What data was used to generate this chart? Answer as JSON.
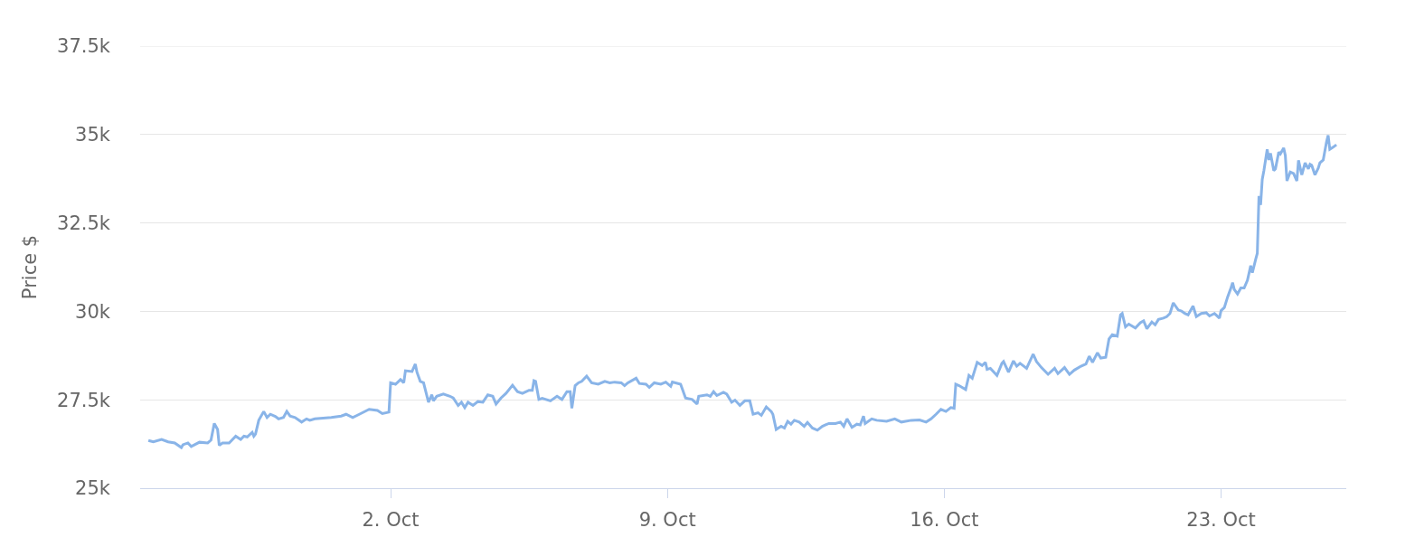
{
  "chart_data": {
    "type": "line",
    "ylabel": "Price $",
    "color": "#89b4e8",
    "grid": "y",
    "xlim": [
      "--09-25T16:00",
      "--10-26T04:00"
    ],
    "xticks": [
      {
        "value": "--10-02",
        "label": "2. Oct"
      },
      {
        "value": "--10-09",
        "label": "9. Oct"
      },
      {
        "value": "--10-16",
        "label": "16. Oct"
      },
      {
        "value": "--10-23",
        "label": "23. Oct"
      }
    ],
    "ylim": [
      25000,
      37500
    ],
    "yticks": [
      {
        "value": 25000,
        "label": "25k"
      },
      {
        "value": 27500,
        "label": "27.5k"
      },
      {
        "value": 30000,
        "label": "30k"
      },
      {
        "value": 32500,
        "label": "32.5k"
      },
      {
        "value": 35000,
        "label": "35k"
      },
      {
        "value": 37500,
        "label": "37.5k"
      }
    ],
    "x": [
      "--09-25T21:00",
      "--09-26T00:00",
      "--09-26T05:00",
      "--09-26T09:00",
      "--09-26T13:00",
      "--09-26T17:00",
      "--09-26T18:00",
      "--09-26T21:00",
      "--09-26T23:00",
      "--09-27T04:00",
      "--09-27T09:00",
      "--09-27T11:00",
      "--09-27T13:00",
      "--09-27T15:00",
      "--09-27T16:00",
      "--09-27T18:00",
      "--09-27T22:00",
      "--09-28T02:00",
      "--09-28T05:00",
      "--09-28T07:00",
      "--09-28T09:00",
      "--09-28T12:00",
      "--09-28T13:00",
      "--09-28T14:00",
      "--09-28T16:00",
      "--09-28T19:00",
      "--09-28T21:00",
      "--09-28T23:00",
      "--09-29T02:00",
      "--09-29T04:00",
      "--09-29T07:00",
      "--09-29T09:00",
      "--09-29T11:00",
      "--09-29T14:00",
      "--09-29T18:00",
      "--09-29T21:00",
      "--09-29T23:00",
      "--09-30T02:00",
      "--09-30T07:00",
      "--09-30T12:00",
      "--09-30T18:00",
      "--09-30T21:00",
      "--10-01T01:00",
      "--10-01T05:00",
      "--10-01T11:00",
      "--10-01T16:00",
      "--10-01T19:00",
      "--10-01T23:00",
      "--10-02T00:00",
      "--10-02T03:00",
      "--10-02T06:00",
      "--10-02T08:00",
      "--10-02T09:00",
      "--10-02T13:00",
      "--10-02T15:00",
      "--10-02T16:00",
      "--10-02T18:00",
      "--10-02T20:00",
      "--10-02T23:00",
      "--10-03T01:00",
      "--10-03T02:00",
      "--10-03T04:00",
      "--10-03T08:00",
      "--10-03T12:00",
      "--10-03T14:00",
      "--10-03T17:00",
      "--10-03T19:00",
      "--10-03T21:00",
      "--10-03T23:00",
      "--10-04T02:00",
      "--10-04T05:00",
      "--10-04T08:00",
      "--10-04T11:00",
      "--10-04T14:00",
      "--10-04T16:00",
      "--10-04T19:00",
      "--10-04T22:00",
      "--10-05T02:00",
      "--10-05T05:00",
      "--10-05T08:00",
      "--10-05T12:00",
      "--10-05T14:00",
      "--10-05T15:00",
      "--10-05T16:00",
      "--10-05T18:00",
      "--10-05T20:00",
      "--10-06T01:00",
      "--10-06T05:00",
      "--10-06T08:00",
      "--10-06T11:00",
      "--10-06T13:00",
      "--10-06T14:00",
      "--10-06T16:00",
      "--10-06T18:00",
      "--10-06T20:00",
      "--10-06T23:00",
      "--10-07T02:00",
      "--10-07T06:00",
      "--10-07T10:00",
      "--10-07T13:00",
      "--10-07T16:00",
      "--10-07T20:00",
      "--10-07T22:00",
      "--10-08T00:00",
      "--10-08T05:00",
      "--10-08T07:00",
      "--10-08T11:00",
      "--10-08T13:00",
      "--10-08T16:00",
      "--10-08T20:00",
      "--10-08T23:00",
      "--10-09T02:00",
      "--10-09T03:00",
      "--10-09T08:00",
      "--10-09T09:00",
      "--10-09T11:00",
      "--10-09T15:00",
      "--10-09T18:00",
      "--10-09T19:00",
      "--10-10T00:00",
      "--10-10T02:00",
      "--10-10T04:00",
      "--10-10T06:00",
      "--10-10T10:00",
      "--10-10T12:00",
      "--10-10T15:00",
      "--10-10T17:00",
      "--10-10T20:00",
      "--10-10T23:00",
      "--10-11T02:00",
      "--10-11T04:00",
      "--10-11T07:00",
      "--10-11T09:00",
      "--10-11T12:00",
      "--10-11T15:00",
      "--10-11T16:00",
      "--10-11T18:00",
      "--10-11T21:00",
      "--10-11T23:00",
      "--10-12T01:00",
      "--10-12T03:00",
      "--10-12T05:00",
      "--10-12T08:00",
      "--10-12T11:00",
      "--10-12T13:00",
      "--10-12T16:00",
      "--10-12T19:00",
      "--10-12T22:00",
      "--10-13T00:00",
      "--10-13T02:00",
      "--10-13T06:00",
      "--10-13T09:00",
      "--10-13T11:00",
      "--10-13T13:00",
      "--10-13T16:00",
      "--10-13T19:00",
      "--10-13T21:00",
      "--10-13T23:00",
      "--10-14T00:00",
      "--10-14T04:00",
      "--10-14T07:00",
      "--10-14T13:00",
      "--10-14T18:00",
      "--10-14T22:00",
      "--10-15T04:00",
      "--10-15T09:00",
      "--10-15T13:00",
      "--10-15T16:00",
      "--10-15T19:00",
      "--10-15T22:00",
      "--10-16T01:00",
      "--10-16T04:00",
      "--10-16T06:00",
      "--10-16T07:00",
      "--10-16T09:00",
      "--10-16T13:00",
      "--10-16T15:00",
      "--10-16T17:00",
      "--10-16T20:00",
      "--10-16T23:00",
      "--10-17T01:00",
      "--10-17T02:00",
      "--10-17T04:00",
      "--10-17T08:00",
      "--10-17T11:00",
      "--10-17T12:00",
      "--10-17T15:00",
      "--10-17T18:00",
      "--10-17T20:00",
      "--10-17T22:00",
      "--10-18T02:00",
      "--10-18T06:00",
      "--10-18T08:00",
      "--10-18T11:00",
      "--10-18T15:00",
      "--10-18T19:00",
      "--10-18T21:00",
      "--10-19T01:00",
      "--10-19T04:00",
      "--10-19T07:00",
      "--10-19T11:00",
      "--10-19T14:00",
      "--10-19T16:00",
      "--10-19T18:00",
      "--10-19T21:00",
      "--10-19T23:00",
      "--10-20T02:00",
      "--10-20T04:00",
      "--10-20T06:00",
      "--10-20T09:00",
      "--10-20T11:00",
      "--10-20T12:00",
      "--10-20T14:00",
      "--10-20T16:00",
      "--10-20T20:00",
      "--10-20T23:00",
      "--10-21T01:00",
      "--10-21T03:00",
      "--10-21T06:00",
      "--10-21T08:00",
      "--10-21T10:00",
      "--10-21T13:00",
      "--10-21T15:00",
      "--10-21T17:00",
      "--10-21T19:00",
      "--10-21T22:00",
      "--10-22T00:00",
      "--10-22T02:00",
      "--10-22T04:00",
      "--10-22T07:00",
      "--10-22T09:00",
      "--10-22T12:00",
      "--10-22T15:00",
      "--10-22T17:00",
      "--10-22T20:00",
      "--10-22T21:00",
      "--10-22T23:00",
      "--10-23T00:00",
      "--10-23T02:00",
      "--10-23T04:00",
      "--10-23T06:00",
      "--10-23T07:00",
      "--10-23T08:00",
      "--10-23T10:00",
      "--10-23T12:00",
      "--10-23T14:00",
      "--10-23T16:00",
      "--10-23T18:00",
      "--10-23T19:00",
      "--10-23T21:00",
      "--10-23T22:00",
      "--10-23T23:00",
      "--10-24T00:00",
      "--10-24T01:00",
      "--10-24T02:00",
      "--10-24T04:00",
      "--10-24T05:00",
      "--10-24T06:00",
      "--10-24T08:00",
      "--10-24T09:00",
      "--10-24T11:00",
      "--10-24T12:00",
      "--10-24T14:00",
      "--10-24T15:00",
      "--10-24T16:00",
      "--10-24T18:00",
      "--10-24T20:00",
      "--10-24T22:00",
      "--10-24T23:00",
      "--10-25T01:00",
      "--10-25T03:00",
      "--10-25T05:00",
      "--10-25T06:00",
      "--10-25T07:00",
      "--10-25T09:00",
      "--10-25T11:00",
      "--10-25T12:00",
      "--10-25T14:00",
      "--10-25T16:00",
      "--10-25T17:00",
      "--10-25T18:00",
      "--10-25T20:00",
      "--10-25T22:00"
    ],
    "values": [
      26350,
      26310,
      26380,
      26310,
      26280,
      26150,
      26230,
      26280,
      26180,
      26300,
      26280,
      26360,
      26830,
      26660,
      26210,
      26280,
      26280,
      26470,
      26380,
      26470,
      26450,
      26580,
      26470,
      26530,
      26920,
      27170,
      27000,
      27090,
      27030,
      26960,
      27000,
      27170,
      27040,
      27000,
      26870,
      26960,
      26920,
      26960,
      26980,
      27000,
      27040,
      27090,
      27000,
      27090,
      27230,
      27200,
      27110,
      27150,
      27980,
      27940,
      28070,
      27980,
      28320,
      28300,
      28510,
      28280,
      28020,
      27980,
      27430,
      27640,
      27470,
      27600,
      27660,
      27600,
      27550,
      27340,
      27430,
      27280,
      27430,
      27340,
      27450,
      27430,
      27640,
      27600,
      27380,
      27550,
      27680,
      27910,
      27730,
      27680,
      27770,
      27770,
      28040,
      28020,
      27510,
      27540,
      27470,
      27600,
      27510,
      27730,
      27730,
      27260,
      27900,
      27980,
      28020,
      28170,
      27980,
      27940,
      28020,
      27980,
      28000,
      27980,
      27900,
      27980,
      28110,
      27960,
      27940,
      27850,
      27980,
      27940,
      28000,
      27880,
      28000,
      27940,
      27810,
      27550,
      27510,
      27380,
      27600,
      27640,
      27600,
      27730,
      27620,
      27710,
      27660,
      27430,
      27490,
      27340,
      27470,
      27470,
      27090,
      27130,
      27060,
      27300,
      27170,
      27090,
      26660,
      26750,
      26700,
      26890,
      26810,
      26920,
      26870,
      26750,
      26860,
      26700,
      26640,
      26750,
      26790,
      26830,
      26830,
      26870,
      26750,
      26960,
      26720,
      26810,
      26790,
      27040,
      26830,
      26960,
      26920,
      26890,
      26960,
      26870,
      26920,
      26930,
      26870,
      26960,
      27090,
      27230,
      27170,
      27280,
      27260,
      27940,
      27900,
      27790,
      28190,
      28110,
      28560,
      28470,
      28560,
      28360,
      28390,
      28190,
      28530,
      28580,
      28280,
      28600,
      28450,
      28530,
      28390,
      28790,
      28580,
      28410,
      28220,
      28390,
      28240,
      28410,
      28220,
      28340,
      28450,
      28510,
      28730,
      28560,
      28830,
      28680,
      28700,
      29220,
      29340,
      29300,
      29900,
      29940,
      29560,
      29640,
      29530,
      29680,
      29730,
      29510,
      29700,
      29620,
      29770,
      29810,
      29850,
      29940,
      30240,
      30040,
      30010,
      29940,
      29900,
      30150,
      29850,
      29940,
      29960,
      29870,
      29940,
      29900,
      29810,
      30020,
      30110,
      30410,
      30660,
      30810,
      30620,
      30490,
      30660,
      30660,
      30880,
      31290,
      31090,
      31470,
      31640,
      33260,
      33010,
      33730,
      33980,
      34580,
      34280,
      34470,
      33980,
      34030,
      34500,
      34450,
      34620,
      34410,
      33690,
      33940,
      33900,
      33690,
      34270,
      33860,
      34200,
      34030,
      34160,
      34130,
      33860,
      34050,
      34200,
      34280,
      34790,
      34980,
      34580,
      34640,
      34710
    ]
  }
}
